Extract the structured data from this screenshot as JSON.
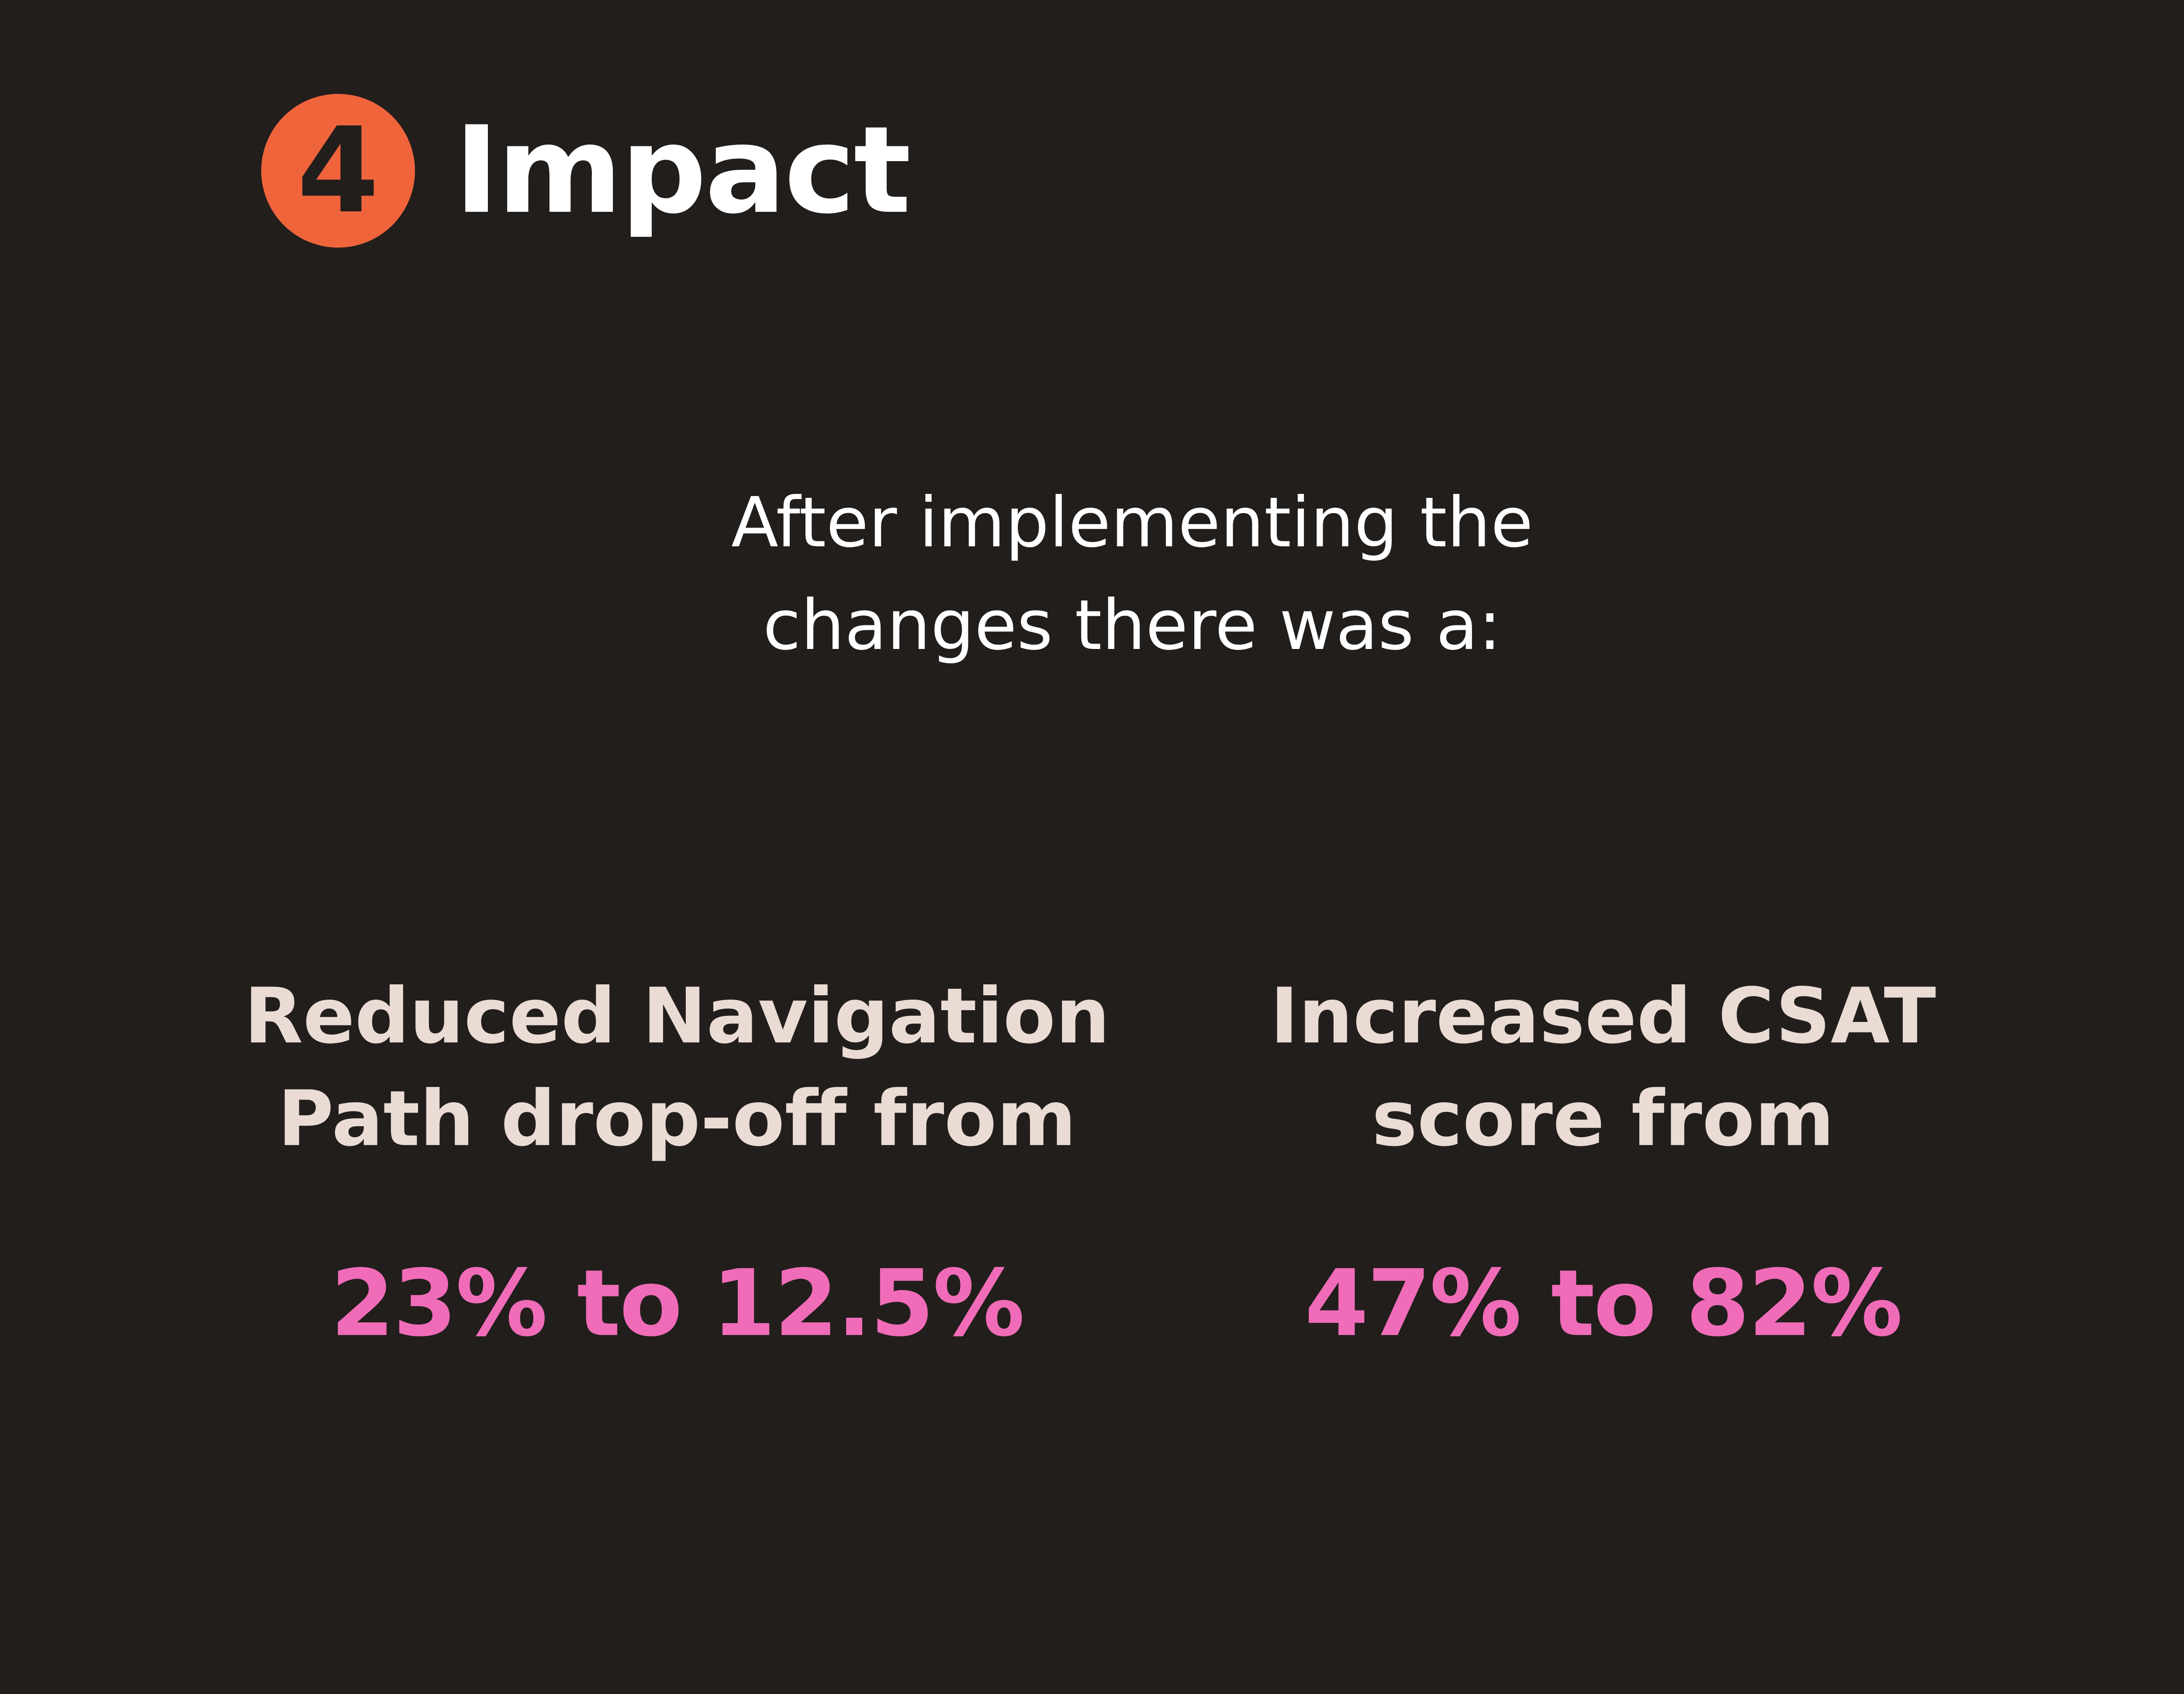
{
  "header": {
    "step_number": "4",
    "title": "Impact"
  },
  "intro": {
    "lines": [
      "After implementing the",
      "changes there was a:"
    ]
  },
  "metrics": [
    {
      "label_lines": [
        "Reduced Navigation",
        "Path drop-off from"
      ],
      "value": "23% to 12.5%"
    },
    {
      "label_lines": [
        "Increased CSAT",
        "score from"
      ],
      "value": "47% to 82%"
    }
  ],
  "colors": {
    "background": "#221e1c",
    "badge": "#f0643c",
    "title": "#ffffff",
    "label": "#eadcd4",
    "highlight": "#f06cb8"
  }
}
